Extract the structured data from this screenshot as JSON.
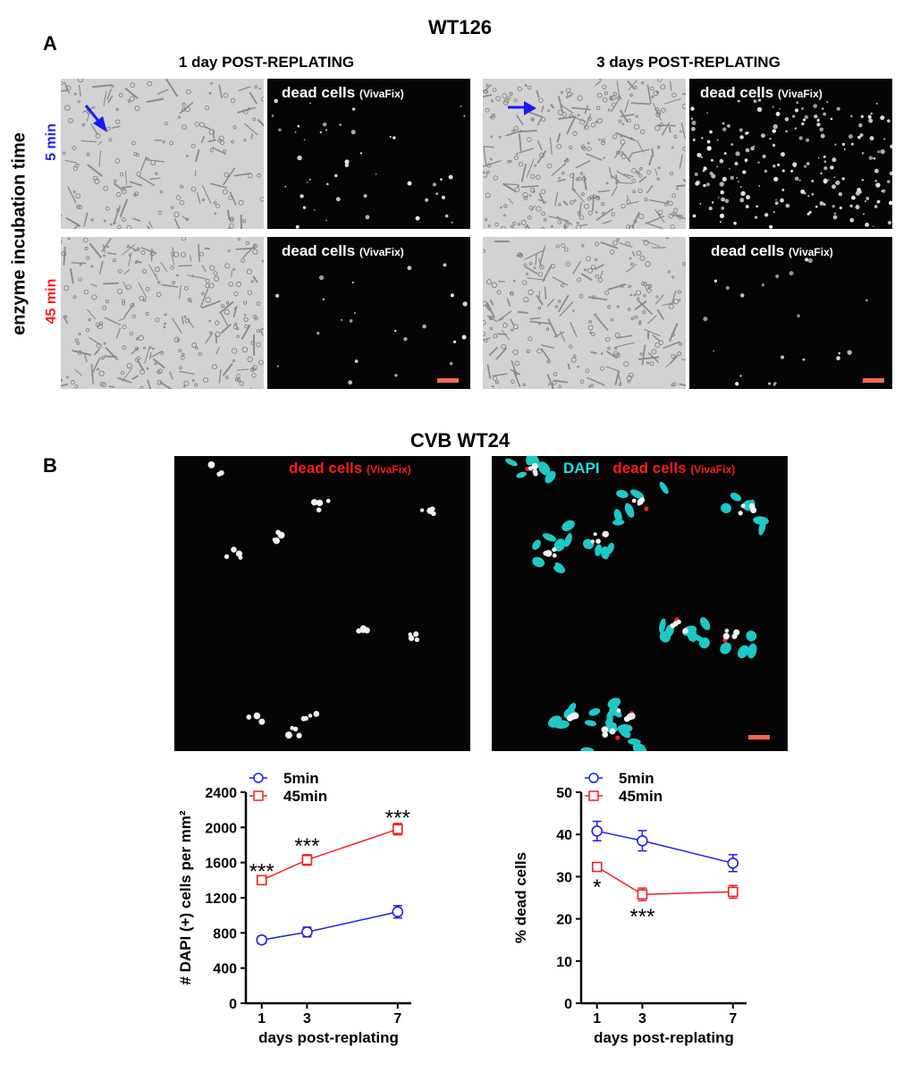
{
  "panel_a": {
    "letter": "A",
    "title": "WT126",
    "col1_title": "1 day POST-REPLATING",
    "col2_title": "3 days POST-REPLATING",
    "y_axis_label": "enzyme incubation time",
    "row1_label": "5 min",
    "row2_label": "45 min",
    "dead_label": "dead cells",
    "dead_label_small": "(VivaFix)",
    "arrow_color": "#1a1aff",
    "row1_color": "#2323e0",
    "row2_color": "#ff1a1a"
  },
  "panel_b": {
    "letter": "B",
    "title": "CVB WT24",
    "left_label": "dead cells",
    "left_label_small": "(VivaFix)",
    "right_label_dapi": "DAPI",
    "right_label": "dead cells",
    "right_label_small": "(VivaFix)"
  },
  "chart_data": [
    {
      "type": "line",
      "x": [
        1,
        3,
        7
      ],
      "xlabel": "days post-replating",
      "ylabel": "# DAPI (+) cells per mm²",
      "ylim": [
        0,
        2400
      ],
      "yticks": [
        0,
        400,
        800,
        1200,
        1600,
        2000,
        2400
      ],
      "xticks": [
        1,
        3,
        7
      ],
      "legend": "top-left",
      "series": [
        {
          "name": "5min",
          "color": "#2020e0",
          "marker": "circle",
          "values": [
            720,
            810,
            1040
          ],
          "err": [
            40,
            55,
            70
          ]
        },
        {
          "name": "45min",
          "color": "#ee2222",
          "marker": "square",
          "values": [
            1400,
            1630,
            1980
          ],
          "err": [
            30,
            60,
            65
          ]
        }
      ],
      "annotations": [
        {
          "text": "***",
          "x": 1,
          "y": 1500
        },
        {
          "text": "***",
          "x": 3,
          "y": 1790
        },
        {
          "text": "***",
          "x": 7,
          "y": 2110
        }
      ]
    },
    {
      "type": "line",
      "x": [
        1,
        3,
        7
      ],
      "xlabel": "days post-replating",
      "ylabel": "% dead cells",
      "ylim": [
        0,
        50
      ],
      "yticks": [
        0,
        10,
        20,
        30,
        40,
        50
      ],
      "xticks": [
        1,
        3,
        7
      ],
      "legend": "top-left",
      "series": [
        {
          "name": "5min",
          "color": "#2020e0",
          "marker": "circle",
          "values": [
            40.8,
            38.5,
            33.2
          ],
          "err": [
            2.3,
            2.4,
            2.0
          ]
        },
        {
          "name": "45min",
          "color": "#ee2222",
          "marker": "square",
          "values": [
            32.3,
            25.8,
            26.4
          ],
          "err": [
            0.8,
            1.5,
            1.5
          ]
        }
      ],
      "annotations": [
        {
          "text": "*",
          "x": 1,
          "y": 27.5
        },
        {
          "text": "***",
          "x": 3,
          "y": 20.5
        }
      ]
    }
  ]
}
